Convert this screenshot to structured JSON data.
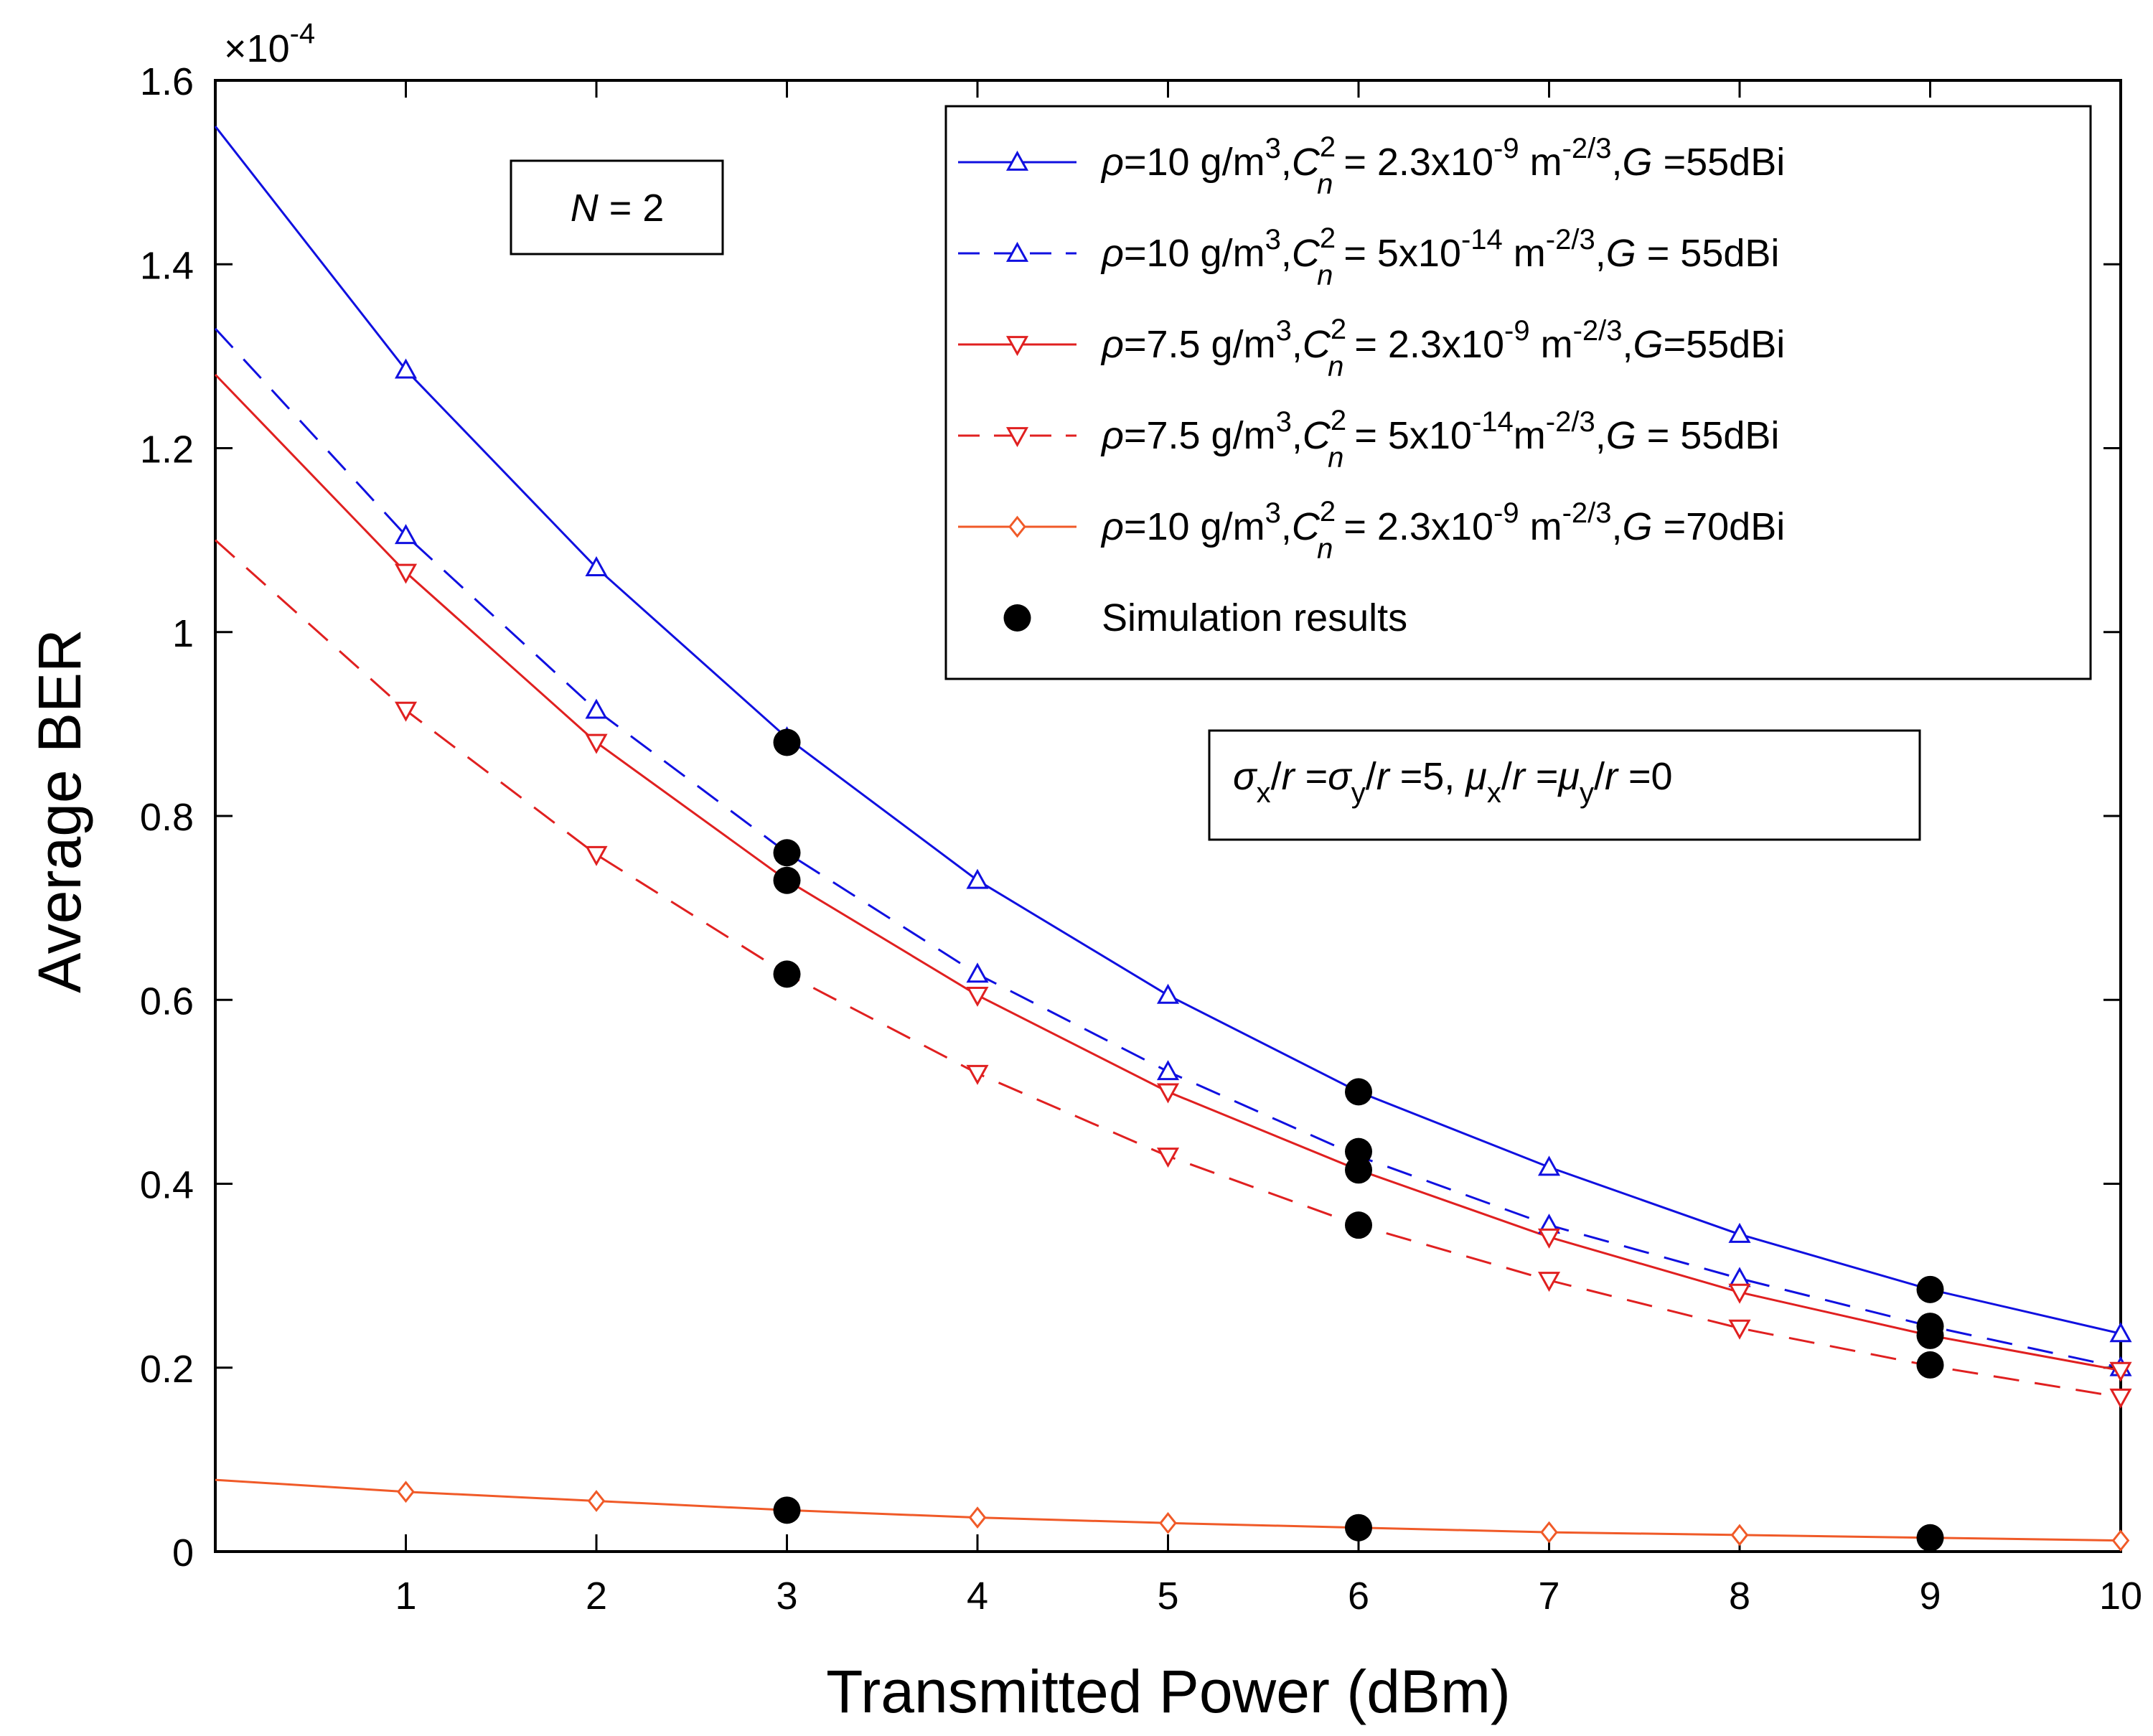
{
  "chart_data": {
    "type": "line",
    "title": "",
    "xlabel": "Transmitted Power (dBm)",
    "ylabel": "Average BER",
    "y_multiplier": "×10",
    "y_multiplier_exp": "-4",
    "xlim": [
      0,
      10
    ],
    "ylim": [
      0,
      1.6
    ],
    "xticks": [
      "1",
      "2",
      "3",
      "4",
      "5",
      "6",
      "7",
      "8",
      "9",
      "10"
    ],
    "yticks": [
      "0",
      "0.2",
      "0.4",
      "0.6",
      "0.8",
      "1",
      "1.2",
      "1.4",
      "1.6"
    ],
    "grid": false,
    "legend_position": "top-right",
    "annotations": {
      "n_label": {
        "var": "N",
        "rest": " = 2"
      },
      "params": {
        "sigma": "σ",
        "mu": "μ",
        "x": "x",
        "y": "y",
        "r": "r",
        "eq1": " =",
        "eq2": " =5, ",
        "eq3": " =",
        "eq4": " =0",
        "slash": "/"
      }
    },
    "series": [
      {
        "name": "rho10_cn2.3e-9_G55",
        "color": "#1010e0",
        "dash": "solid",
        "marker": "triangle-up",
        "legend": {
          "rho_label": "ρ",
          "rho_val": "=10 g/m",
          "rho_exp": "3",
          "cn_label": "C",
          "cn_sup": "2",
          "cn_sub": "n",
          "cn_val": " = 2.3x10",
          "cn_exp": "-9",
          "unit": " m",
          "unit_exp": "-2/3",
          "g_sep": ",",
          "g_label": "G",
          "g_val": " =55dBi"
        },
        "x": [
          0,
          1,
          2,
          3,
          4,
          5,
          6,
          7,
          8,
          9,
          10
        ],
        "values": [
          1.55,
          1.285,
          1.07,
          0.885,
          0.73,
          0.605,
          0.5,
          0.418,
          0.345,
          0.285,
          0.237
        ]
      },
      {
        "name": "rho10_cn5e-14_G55",
        "color": "#1010e0",
        "dash": "dashed",
        "marker": "triangle-up",
        "legend": {
          "rho_label": "ρ",
          "rho_val": "=10 g/m",
          "rho_exp": "3",
          "cn_label": "C",
          "cn_sup": "2",
          "cn_sub": "n",
          "cn_val": " = 5x10",
          "cn_exp": "-14",
          "unit": " m",
          "unit_exp": "-2/3",
          "g_sep": ",",
          "g_label": "G",
          "g_val": " = 55dBi"
        },
        "x": [
          0,
          1,
          2,
          3,
          4,
          5,
          6,
          7,
          8,
          9,
          10
        ],
        "values": [
          1.33,
          1.105,
          0.915,
          0.76,
          0.628,
          0.522,
          0.43,
          0.355,
          0.297,
          0.245,
          0.2
        ]
      },
      {
        "name": "rho7.5_cn2.3e-9_G55",
        "color": "#e02020",
        "dash": "solid",
        "marker": "triangle-down",
        "legend": {
          "rho_label": "ρ",
          "rho_val": "=7.5 g/m",
          "rho_exp": "3",
          "cn_label": "C",
          "cn_sup": "2",
          "cn_sub": "n",
          "cn_val": " = 2.3x10",
          "cn_exp": "-9",
          "unit": " m",
          "unit_exp": "-2/3",
          "g_sep": ",",
          "g_label": "G",
          "g_val": "=55dBi"
        },
        "x": [
          0,
          1,
          2,
          3,
          4,
          5,
          6,
          7,
          8,
          9,
          10
        ],
        "values": [
          1.28,
          1.065,
          0.88,
          0.73,
          0.605,
          0.5,
          0.415,
          0.342,
          0.282,
          0.235,
          0.197
        ]
      },
      {
        "name": "rho7.5_cn5e-14_G55",
        "color": "#e02020",
        "dash": "dashed",
        "marker": "triangle-down",
        "legend": {
          "rho_label": "ρ",
          "rho_val": "=7.5 g/m",
          "rho_exp": "3",
          "cn_label": "C",
          "cn_sup": "2",
          "cn_sub": "n",
          "cn_val": " = 5x10",
          "cn_exp": "-14",
          "unit": "m",
          "unit_exp": "-2/3",
          "g_sep": ",",
          "g_label": "G",
          "g_val": " = 55dBi"
        },
        "x": [
          0,
          1,
          2,
          3,
          4,
          5,
          6,
          7,
          8,
          9,
          10
        ],
        "values": [
          1.1,
          0.915,
          0.758,
          0.628,
          0.52,
          0.43,
          0.355,
          0.295,
          0.243,
          0.202,
          0.168
        ]
      },
      {
        "name": "rho10_cn2.3e-9_G70",
        "color": "#f05a28",
        "dash": "solid",
        "marker": "diamond",
        "legend": {
          "rho_label": "ρ",
          "rho_val": "=10 g/m",
          "rho_exp": "3",
          "cn_label": "C",
          "cn_sup": "2",
          "cn_sub": "n",
          "cn_val": " = 2.3x10",
          "cn_exp": "-9",
          "unit": " m",
          "unit_exp": "-2/3",
          "g_sep": ",",
          "g_label": "G",
          "g_val": " =70dBi"
        },
        "x": [
          0,
          1,
          2,
          3,
          4,
          5,
          6,
          7,
          8,
          9,
          10
        ],
        "values": [
          0.078,
          0.065,
          0.055,
          0.045,
          0.037,
          0.031,
          0.026,
          0.021,
          0.018,
          0.015,
          0.012
        ]
      }
    ],
    "simulation": {
      "label": "Simulation results",
      "color": "#000000",
      "points": [
        {
          "x": 3,
          "y": 0.88
        },
        {
          "x": 3,
          "y": 0.76
        },
        {
          "x": 3,
          "y": 0.73
        },
        {
          "x": 3,
          "y": 0.628
        },
        {
          "x": 3,
          "y": 0.045
        },
        {
          "x": 6,
          "y": 0.5
        },
        {
          "x": 6,
          "y": 0.435
        },
        {
          "x": 6,
          "y": 0.415
        },
        {
          "x": 6,
          "y": 0.355
        },
        {
          "x": 6,
          "y": 0.026
        },
        {
          "x": 9,
          "y": 0.285
        },
        {
          "x": 9,
          "y": 0.245
        },
        {
          "x": 9,
          "y": 0.235
        },
        {
          "x": 9,
          "y": 0.203
        },
        {
          "x": 9,
          "y": 0.015
        }
      ]
    }
  }
}
